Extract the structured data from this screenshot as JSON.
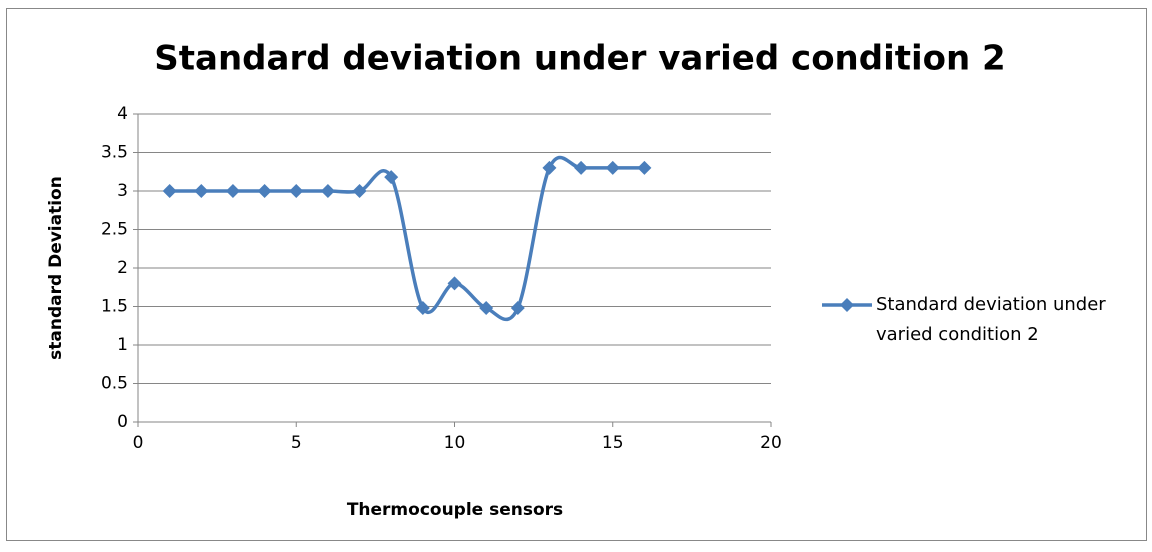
{
  "chart_data": {
    "type": "line",
    "title": "Standard deviation under varied condition 2",
    "xlabel": "Thermocouple sensors",
    "ylabel": "standard Deviation",
    "x": [
      1,
      2,
      3,
      4,
      5,
      6,
      7,
      8,
      9,
      10,
      11,
      12,
      13,
      14,
      15,
      16
    ],
    "series": [
      {
        "name": "Standard deviation under varied condition 2",
        "color": "#4a7ebb",
        "values": [
          3,
          3,
          3,
          3,
          3,
          3,
          3,
          3.18,
          1.48,
          1.8,
          1.48,
          1.48,
          3.3,
          3.3,
          3.3,
          3.3
        ]
      }
    ],
    "xlim": [
      0,
      20
    ],
    "xticks": [
      0,
      5,
      10,
      15,
      20
    ],
    "ylim": [
      0,
      4
    ],
    "yticks": [
      0,
      0.5,
      1,
      1.5,
      2,
      2.5,
      3,
      3.5,
      4
    ],
    "grid": true,
    "smooth": true,
    "legend": "right"
  }
}
